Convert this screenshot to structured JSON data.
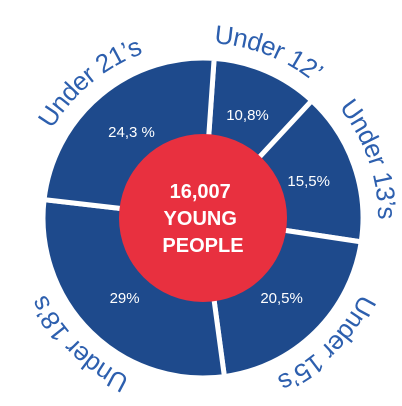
{
  "chart_data": {
    "type": "pie",
    "variant": "donut",
    "center_label": [
      "16,007",
      "YOUNG",
      "PEOPLE"
    ],
    "slices": [
      {
        "category": "Under 12’s",
        "value": 10.8,
        "label": "10,8%"
      },
      {
        "category": "Under 13’s",
        "value": 15.5,
        "label": "15,5%"
      },
      {
        "category": "Under 15’s",
        "value": 20.5,
        "label": "20,5%"
      },
      {
        "category": "Under 18’s",
        "value": 29,
        "label": "29%"
      },
      {
        "category": "Under 21’s",
        "value": 24.3,
        "label": "24,3 %"
      }
    ],
    "colors": {
      "slice": "#1e4a8c",
      "center": "#e8303f",
      "outer_text": "#2d5fae",
      "separator": "#ffffff"
    }
  }
}
